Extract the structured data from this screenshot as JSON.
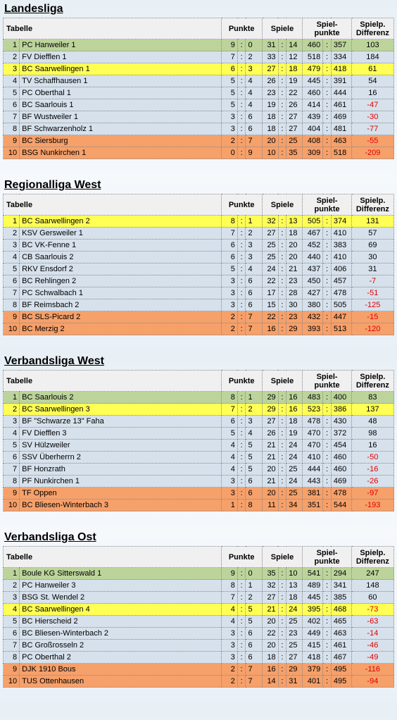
{
  "colors": {
    "green": "#bcd49b",
    "bluegrey": "#d6e1ec",
    "yellow": "#ffff55",
    "orange": "#f6a06a",
    "header": "#f0f0f0"
  },
  "headers": {
    "tabelle": "Tabelle",
    "punkte": "Punkte",
    "spiele": "Spiele",
    "spielpunkte": "Spiel-\npunkte",
    "differenz": "Spielp.\nDifferenz"
  },
  "leagues": [
    {
      "title": "Landesliga",
      "rows": [
        {
          "rank": 1,
          "team": "PC Hanweiler 1",
          "pw": 9,
          "pl": 0,
          "sw": 31,
          "sl": 14,
          "spw": 460,
          "spl": 357,
          "diff": 103,
          "color": "green"
        },
        {
          "rank": 2,
          "team": "FV Diefflen 1",
          "pw": 7,
          "pl": 2,
          "sw": 33,
          "sl": 12,
          "spw": 518,
          "spl": 334,
          "diff": 184,
          "color": "bluegrey"
        },
        {
          "rank": 3,
          "team": "BC Saarwellingen 1",
          "pw": 6,
          "pl": 3,
          "sw": 27,
          "sl": 18,
          "spw": 479,
          "spl": 418,
          "diff": 61,
          "color": "yellow"
        },
        {
          "rank": 4,
          "team": "TV Schaffhausen 1",
          "pw": 5,
          "pl": 4,
          "sw": 26,
          "sl": 19,
          "spw": 445,
          "spl": 391,
          "diff": 54,
          "color": "bluegrey"
        },
        {
          "rank": 5,
          "team": "PC Oberthal 1",
          "pw": 5,
          "pl": 4,
          "sw": 23,
          "sl": 22,
          "spw": 460,
          "spl": 444,
          "diff": 16,
          "color": "bluegrey"
        },
        {
          "rank": 6,
          "team": "BC Saarlouis 1",
          "pw": 5,
          "pl": 4,
          "sw": 19,
          "sl": 26,
          "spw": 414,
          "spl": 461,
          "diff": -47,
          "color": "bluegrey"
        },
        {
          "rank": 7,
          "team": "BF Wustweiler 1",
          "pw": 3,
          "pl": 6,
          "sw": 18,
          "sl": 27,
          "spw": 439,
          "spl": 469,
          "diff": -30,
          "color": "bluegrey"
        },
        {
          "rank": 8,
          "team": "BF Schwarzenholz 1",
          "pw": 3,
          "pl": 6,
          "sw": 18,
          "sl": 27,
          "spw": 404,
          "spl": 481,
          "diff": -77,
          "color": "bluegrey"
        },
        {
          "rank": 9,
          "team": "BC Siersburg",
          "pw": 2,
          "pl": 7,
          "sw": 20,
          "sl": 25,
          "spw": 408,
          "spl": 463,
          "diff": -55,
          "color": "orange"
        },
        {
          "rank": 10,
          "team": "BSG Nunkirchen 1",
          "pw": 0,
          "pl": 9,
          "sw": 10,
          "sl": 35,
          "spw": 309,
          "spl": 518,
          "diff": -209,
          "color": "orange"
        }
      ]
    },
    {
      "title": "Regionalliga West",
      "rows": [
        {
          "rank": 1,
          "team": "BC Saarwellingen 2",
          "pw": 8,
          "pl": 1,
          "sw": 32,
          "sl": 13,
          "spw": 505,
          "spl": 374,
          "diff": 131,
          "color": "yellow"
        },
        {
          "rank": 2,
          "team": "KSV Gersweiler 1",
          "pw": 7,
          "pl": 2,
          "sw": 27,
          "sl": 18,
          "spw": 467,
          "spl": 410,
          "diff": 57,
          "color": "bluegrey"
        },
        {
          "rank": 3,
          "team": "BC VK-Fenne 1",
          "pw": 6,
          "pl": 3,
          "sw": 25,
          "sl": 20,
          "spw": 452,
          "spl": 383,
          "diff": 69,
          "color": "bluegrey"
        },
        {
          "rank": 4,
          "team": "CB Saarlouis 2",
          "pw": 6,
          "pl": 3,
          "sw": 25,
          "sl": 20,
          "spw": 440,
          "spl": 410,
          "diff": 30,
          "color": "bluegrey"
        },
        {
          "rank": 5,
          "team": "RKV Ensdorf 2",
          "pw": 5,
          "pl": 4,
          "sw": 24,
          "sl": 21,
          "spw": 437,
          "spl": 406,
          "diff": 31,
          "color": "bluegrey"
        },
        {
          "rank": 6,
          "team": "BC Rehlingen 2",
          "pw": 3,
          "pl": 6,
          "sw": 22,
          "sl": 23,
          "spw": 450,
          "spl": 457,
          "diff": -7,
          "color": "bluegrey"
        },
        {
          "rank": 7,
          "team": "PC Schwalbach 1",
          "pw": 3,
          "pl": 6,
          "sw": 17,
          "sl": 28,
          "spw": 427,
          "spl": 478,
          "diff": -51,
          "color": "bluegrey"
        },
        {
          "rank": 8,
          "team": "BF Reimsbach 2",
          "pw": 3,
          "pl": 6,
          "sw": 15,
          "sl": 30,
          "spw": 380,
          "spl": 505,
          "diff": -125,
          "color": "bluegrey"
        },
        {
          "rank": 9,
          "team": "BC SLS-Picard 2",
          "pw": 2,
          "pl": 7,
          "sw": 22,
          "sl": 23,
          "spw": 432,
          "spl": 447,
          "diff": -15,
          "color": "orange"
        },
        {
          "rank": 10,
          "team": "BC Merzig 2",
          "pw": 2,
          "pl": 7,
          "sw": 16,
          "sl": 29,
          "spw": 393,
          "spl": 513,
          "diff": -120,
          "color": "orange"
        }
      ]
    },
    {
      "title": "Verbandsliga West",
      "rows": [
        {
          "rank": 1,
          "team": "BC Saarlouis 2",
          "pw": 8,
          "pl": 1,
          "sw": 29,
          "sl": 16,
          "spw": 483,
          "spl": 400,
          "diff": 83,
          "color": "green"
        },
        {
          "rank": 2,
          "team": "BC Saarwellingen 3",
          "pw": 7,
          "pl": 2,
          "sw": 29,
          "sl": 16,
          "spw": 523,
          "spl": 386,
          "diff": 137,
          "color": "yellow"
        },
        {
          "rank": 3,
          "team": "BF \"Schwarze 13\" Faha",
          "pw": 6,
          "pl": 3,
          "sw": 27,
          "sl": 18,
          "spw": 478,
          "spl": 430,
          "diff": 48,
          "color": "bluegrey"
        },
        {
          "rank": 4,
          "team": "FV Diefflen 3",
          "pw": 5,
          "pl": 4,
          "sw": 26,
          "sl": 19,
          "spw": 470,
          "spl": 372,
          "diff": 98,
          "color": "bluegrey"
        },
        {
          "rank": 5,
          "team": "SV Hülzweiler",
          "pw": 4,
          "pl": 5,
          "sw": 21,
          "sl": 24,
          "spw": 470,
          "spl": 454,
          "diff": 16,
          "color": "bluegrey"
        },
        {
          "rank": 6,
          "team": "SSV Überherrn 2",
          "pw": 4,
          "pl": 5,
          "sw": 21,
          "sl": 24,
          "spw": 410,
          "spl": 460,
          "diff": -50,
          "color": "bluegrey"
        },
        {
          "rank": 7,
          "team": "BF Honzrath",
          "pw": 4,
          "pl": 5,
          "sw": 20,
          "sl": 25,
          "spw": 444,
          "spl": 460,
          "diff": -16,
          "color": "bluegrey"
        },
        {
          "rank": 8,
          "team": "PF Nunkirchen 1",
          "pw": 3,
          "pl": 6,
          "sw": 21,
          "sl": 24,
          "spw": 443,
          "spl": 469,
          "diff": -26,
          "color": "bluegrey"
        },
        {
          "rank": 9,
          "team": "TF Oppen",
          "pw": 3,
          "pl": 6,
          "sw": 20,
          "sl": 25,
          "spw": 381,
          "spl": 478,
          "diff": -97,
          "color": "orange"
        },
        {
          "rank": 10,
          "team": "BC Bliesen-Winterbach 3",
          "pw": 1,
          "pl": 8,
          "sw": 11,
          "sl": 34,
          "spw": 351,
          "spl": 544,
          "diff": -193,
          "color": "orange"
        }
      ]
    },
    {
      "title": "Verbandsliga Ost",
      "rows": [
        {
          "rank": 1,
          "team": "Boule KG Sitterswald 1",
          "pw": 9,
          "pl": 0,
          "sw": 35,
          "sl": 10,
          "spw": 541,
          "spl": 294,
          "diff": 247,
          "color": "green"
        },
        {
          "rank": 2,
          "team": "PC Hanweiler 3",
          "pw": 8,
          "pl": 1,
          "sw": 32,
          "sl": 13,
          "spw": 489,
          "spl": 341,
          "diff": 148,
          "color": "bluegrey"
        },
        {
          "rank": 3,
          "team": "BSG St. Wendel 2",
          "pw": 7,
          "pl": 2,
          "sw": 27,
          "sl": 18,
          "spw": 445,
          "spl": 385,
          "diff": 60,
          "color": "bluegrey"
        },
        {
          "rank": 4,
          "team": "BC Saarwellingen 4",
          "pw": 4,
          "pl": 5,
          "sw": 21,
          "sl": 24,
          "spw": 395,
          "spl": 468,
          "diff": -73,
          "color": "yellow"
        },
        {
          "rank": 5,
          "team": "BC Hierscheid 2",
          "pw": 4,
          "pl": 5,
          "sw": 20,
          "sl": 25,
          "spw": 402,
          "spl": 465,
          "diff": -63,
          "color": "bluegrey"
        },
        {
          "rank": 6,
          "team": "BC Bliesen-Winterbach 2",
          "pw": 3,
          "pl": 6,
          "sw": 22,
          "sl": 23,
          "spw": 449,
          "spl": 463,
          "diff": -14,
          "color": "bluegrey"
        },
        {
          "rank": 7,
          "team": "BC Großrosseln 2",
          "pw": 3,
          "pl": 6,
          "sw": 20,
          "sl": 25,
          "spw": 415,
          "spl": 461,
          "diff": -46,
          "color": "bluegrey"
        },
        {
          "rank": 8,
          "team": "PC Oberthal 2",
          "pw": 3,
          "pl": 6,
          "sw": 18,
          "sl": 27,
          "spw": 418,
          "spl": 467,
          "diff": -49,
          "color": "bluegrey"
        },
        {
          "rank": 9,
          "team": "DJK 1910 Bous",
          "pw": 2,
          "pl": 7,
          "sw": 16,
          "sl": 29,
          "spw": 379,
          "spl": 495,
          "diff": -116,
          "color": "orange"
        },
        {
          "rank": 10,
          "team": "TUS Ottenhausen",
          "pw": 2,
          "pl": 7,
          "sw": 14,
          "sl": 31,
          "spw": 401,
          "spl": 495,
          "diff": -94,
          "color": "orange"
        }
      ]
    }
  ]
}
